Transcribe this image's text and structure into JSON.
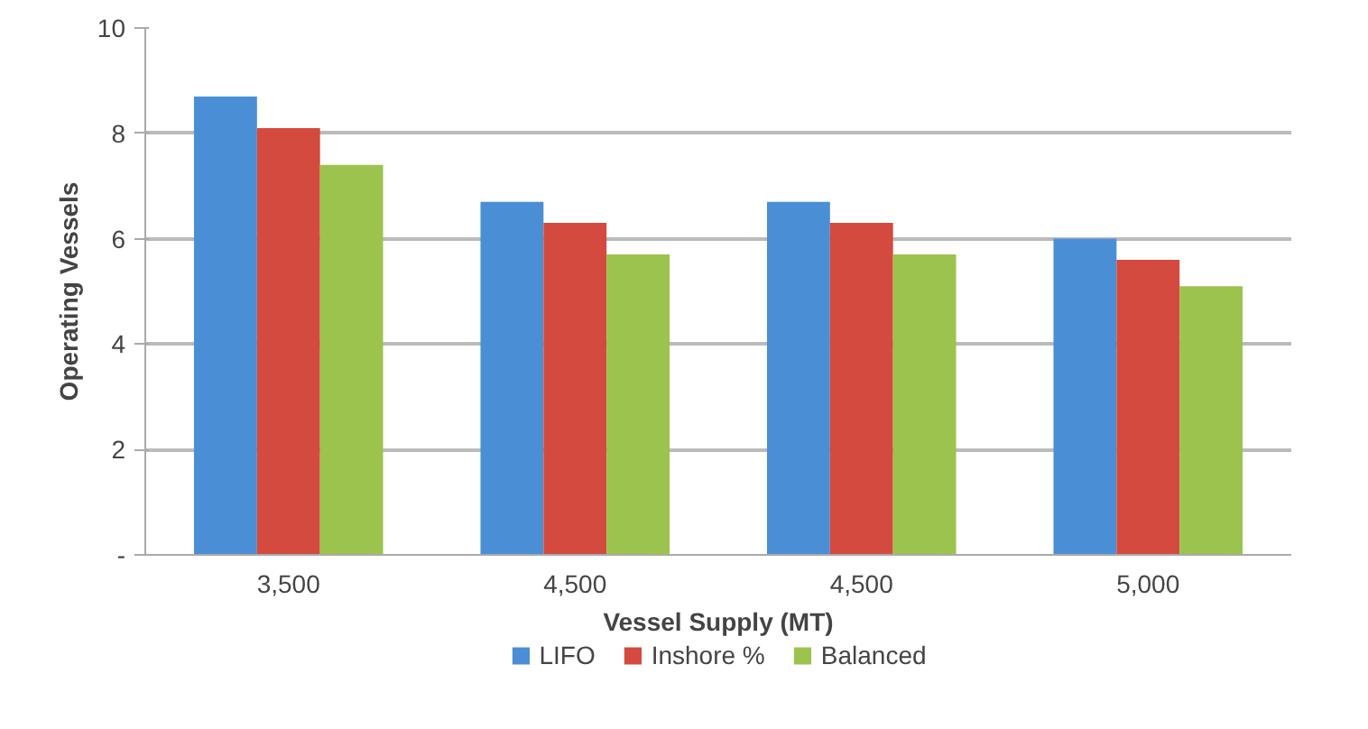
{
  "chart_data": {
    "type": "bar",
    "xlabel": "Vessel Supply (MT)",
    "ylabel": "Operating Vessels",
    "categories": [
      "3,500",
      "4,500",
      "4,500",
      "5,000"
    ],
    "series": [
      {
        "name": "LIFO",
        "color": "#4a8fd6",
        "values": [
          8.7,
          6.7,
          6.7,
          6.0
        ]
      },
      {
        "name": "Inshore %",
        "color": "#d44a3e",
        "values": [
          8.1,
          6.3,
          6.3,
          5.6
        ]
      },
      {
        "name": "Balanced",
        "color": "#9bc34e",
        "values": [
          7.4,
          5.7,
          5.7,
          5.1
        ]
      }
    ],
    "ylim": [
      0,
      10
    ],
    "yticks": [
      {
        "value": 0,
        "label": "-"
      },
      2,
      4,
      6,
      8,
      10
    ],
    "grid": "y",
    "legend": "bottom"
  }
}
